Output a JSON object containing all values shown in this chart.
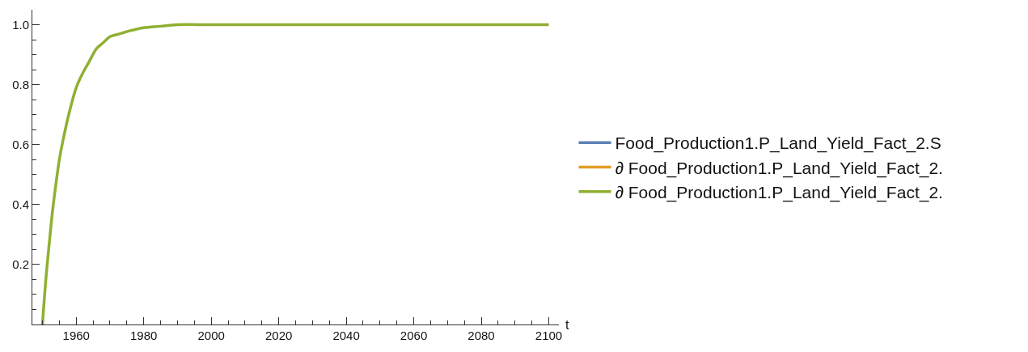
{
  "chart_data": {
    "type": "line",
    "xlabel": "t",
    "x": [
      1950,
      1951,
      1952,
      1953,
      1954,
      1955,
      1956,
      1958,
      1960,
      1962,
      1964,
      1966,
      1968,
      1970,
      1973,
      1976,
      1980,
      1985,
      1990,
      2000,
      2020,
      2050,
      2100
    ],
    "series": [
      {
        "name": "Food_Production1.P_Land_Yield_Fact_2.S",
        "color": "#5e81b5",
        "values": [
          null,
          null,
          null,
          null,
          null,
          null,
          null,
          null,
          null,
          null,
          null,
          null,
          null,
          null,
          null,
          null,
          null,
          null,
          null,
          null,
          null,
          null,
          null
        ]
      },
      {
        "name": "∂ Food_Production1.P_Land_Yield_Fact_2.",
        "color": "#e19c24",
        "values": [
          null,
          null,
          null,
          null,
          null,
          null,
          null,
          null,
          null,
          null,
          null,
          null,
          null,
          null,
          null,
          null,
          null,
          null,
          null,
          null,
          null,
          null,
          null
        ]
      },
      {
        "name": "∂ Food_Production1.P_Land_Yield_Fact_2.",
        "color": "#8fb032",
        "values": [
          0,
          0.15,
          0.27,
          0.38,
          0.47,
          0.55,
          0.61,
          0.71,
          0.79,
          0.84,
          0.88,
          0.92,
          0.94,
          0.96,
          0.97,
          0.98,
          0.99,
          0.995,
          1.0,
          1.0,
          1.0,
          1.0,
          1.0
        ]
      }
    ],
    "xlim": [
      1947,
      2103
    ],
    "ylim": [
      0,
      1.05
    ],
    "xticks": [
      {
        "value": 1950,
        "label": null
      },
      {
        "value": 1955,
        "label": null
      },
      {
        "value": 1960,
        "label": "1960"
      },
      {
        "value": 1965,
        "label": null
      },
      {
        "value": 1970,
        "label": null
      },
      {
        "value": 1975,
        "label": null
      },
      {
        "value": 1980,
        "label": "1980"
      },
      {
        "value": 1985,
        "label": null
      },
      {
        "value": 1990,
        "label": null
      },
      {
        "value": 1995,
        "label": null
      },
      {
        "value": 2000,
        "label": "2000"
      },
      {
        "value": 2005,
        "label": null
      },
      {
        "value": 2010,
        "label": null
      },
      {
        "value": 2015,
        "label": null
      },
      {
        "value": 2020,
        "label": "2020"
      },
      {
        "value": 2025,
        "label": null
      },
      {
        "value": 2030,
        "label": null
      },
      {
        "value": 2035,
        "label": null
      },
      {
        "value": 2040,
        "label": "2040"
      },
      {
        "value": 2045,
        "label": null
      },
      {
        "value": 2050,
        "label": null
      },
      {
        "value": 2055,
        "label": null
      },
      {
        "value": 2060,
        "label": "2060"
      },
      {
        "value": 2065,
        "label": null
      },
      {
        "value": 2070,
        "label": null
      },
      {
        "value": 2075,
        "label": null
      },
      {
        "value": 2080,
        "label": "2080"
      },
      {
        "value": 2085,
        "label": null
      },
      {
        "value": 2090,
        "label": null
      },
      {
        "value": 2095,
        "label": null
      },
      {
        "value": 2100,
        "label": "2100"
      }
    ],
    "yticks": [
      {
        "value": 0.05,
        "label": null
      },
      {
        "value": 0.1,
        "label": null
      },
      {
        "value": 0.15,
        "label": null
      },
      {
        "value": 0.2,
        "label": "0.2"
      },
      {
        "value": 0.25,
        "label": null
      },
      {
        "value": 0.3,
        "label": null
      },
      {
        "value": 0.35,
        "label": null
      },
      {
        "value": 0.4,
        "label": "0.4"
      },
      {
        "value": 0.45,
        "label": null
      },
      {
        "value": 0.5,
        "label": null
      },
      {
        "value": 0.55,
        "label": null
      },
      {
        "value": 0.6,
        "label": "0.6"
      },
      {
        "value": 0.65,
        "label": null
      },
      {
        "value": 0.7,
        "label": null
      },
      {
        "value": 0.75,
        "label": null
      },
      {
        "value": 0.8,
        "label": "0.8"
      },
      {
        "value": 0.85,
        "label": null
      },
      {
        "value": 0.9,
        "label": null
      },
      {
        "value": 0.95,
        "label": null
      },
      {
        "value": 1.0,
        "label": "1.0"
      }
    ],
    "legend": "right",
    "marker": "none",
    "line_style": "solid"
  }
}
